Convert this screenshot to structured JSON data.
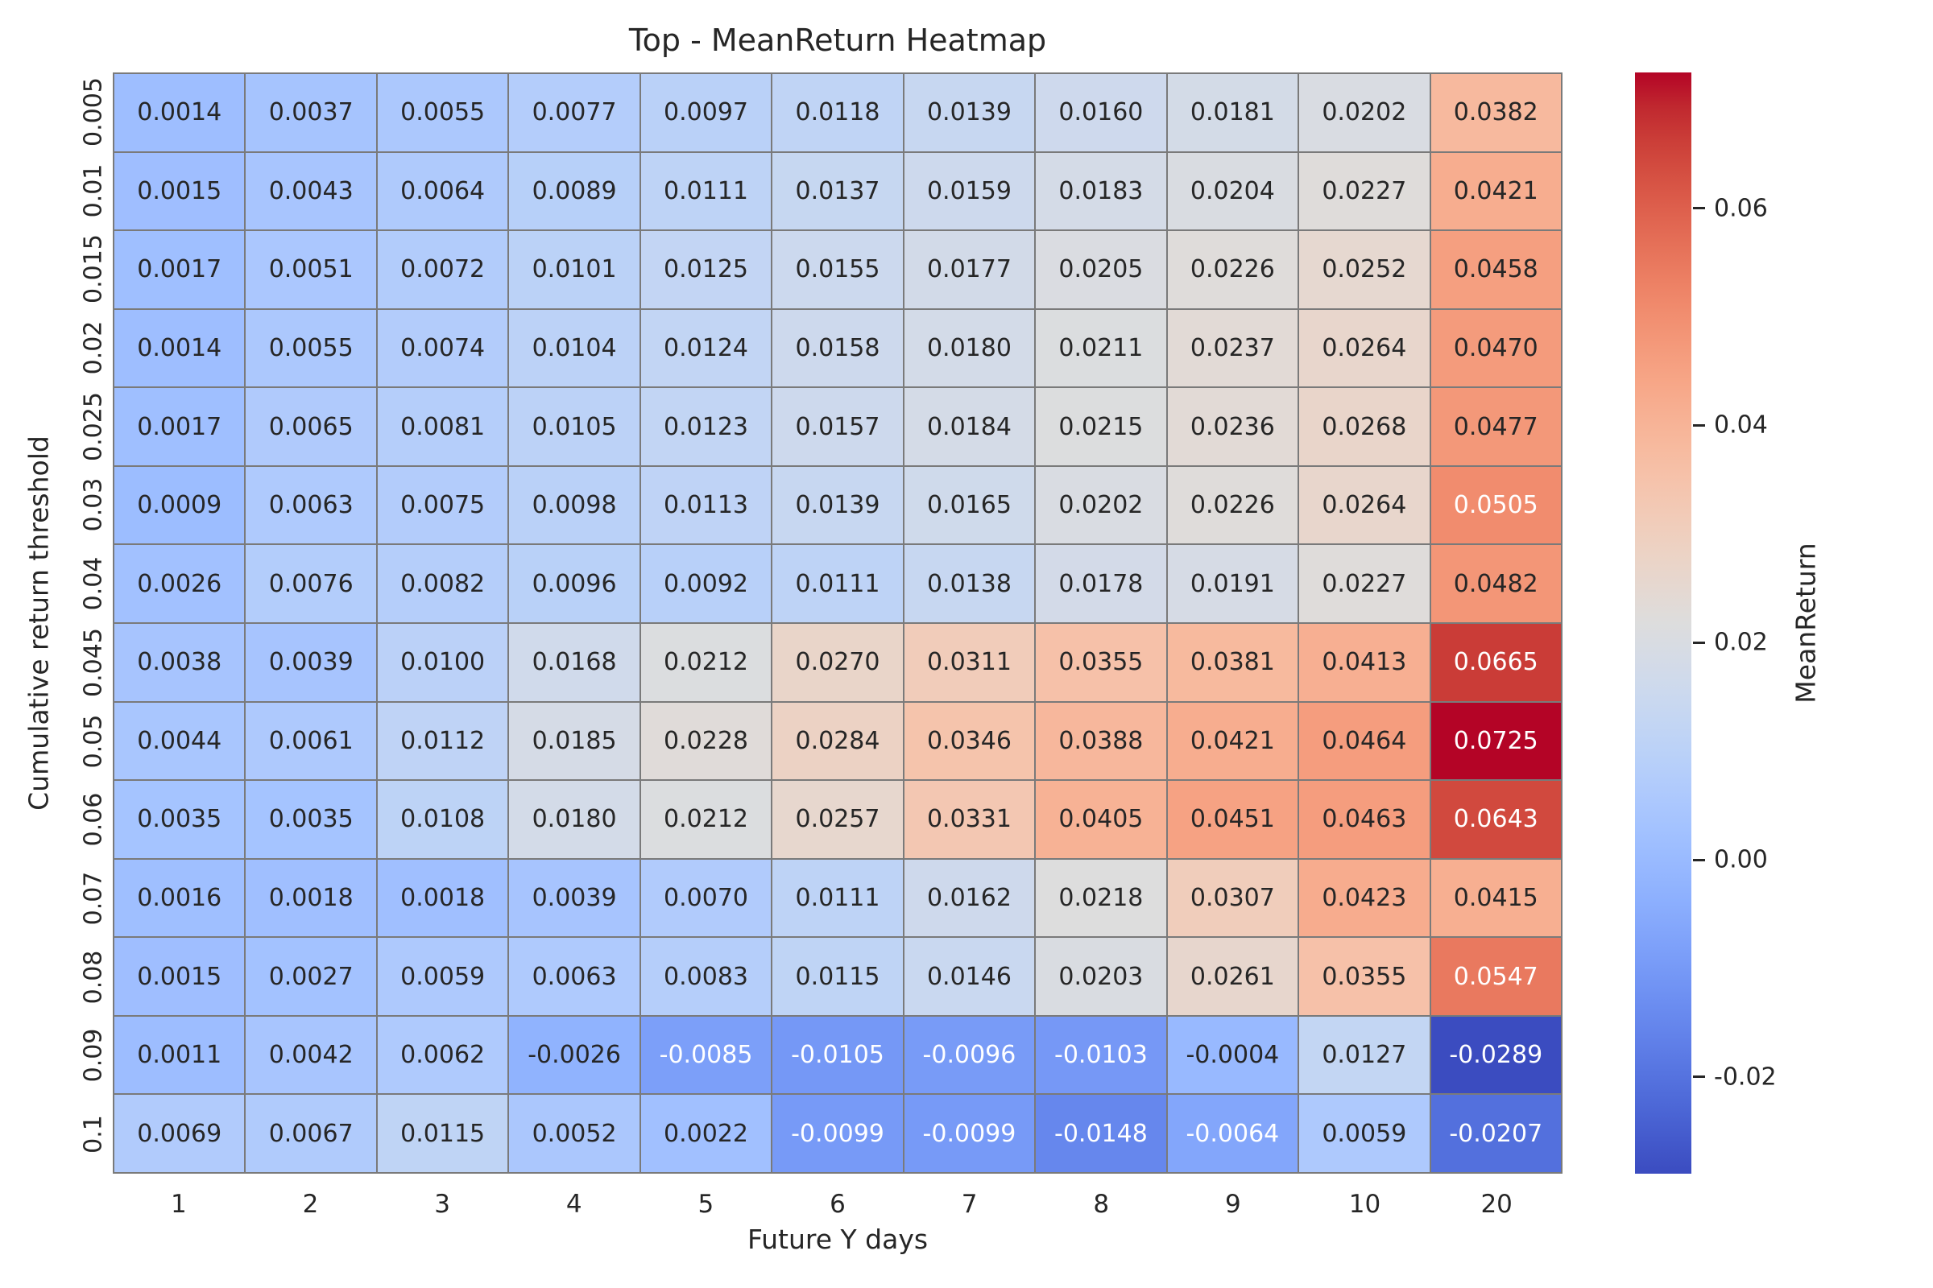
{
  "figure": {
    "background": "#ffffff",
    "text_color": "#262626"
  },
  "chart_data": {
    "type": "heatmap",
    "title": "Top - MeanReturn Heatmap",
    "xlabel": "Future Y days",
    "ylabel": "Cumulative return threshold",
    "x_categories": [
      "1",
      "2",
      "3",
      "4",
      "5",
      "6",
      "7",
      "8",
      "9",
      "10",
      "20"
    ],
    "y_categories": [
      "0.005",
      "0.01",
      "0.015",
      "0.02",
      "0.025",
      "0.03",
      "0.04",
      "0.045",
      "0.05",
      "0.06",
      "0.07",
      "0.08",
      "0.09",
      "0.1"
    ],
    "values": [
      [
        0.0014,
        0.0037,
        0.0055,
        0.0077,
        0.0097,
        0.0118,
        0.0139,
        0.016,
        0.0181,
        0.0202,
        0.0382
      ],
      [
        0.0015,
        0.0043,
        0.0064,
        0.0089,
        0.0111,
        0.0137,
        0.0159,
        0.0183,
        0.0204,
        0.0227,
        0.0421
      ],
      [
        0.0017,
        0.0051,
        0.0072,
        0.0101,
        0.0125,
        0.0155,
        0.0177,
        0.0205,
        0.0226,
        0.0252,
        0.0458
      ],
      [
        0.0014,
        0.0055,
        0.0074,
        0.0104,
        0.0124,
        0.0158,
        0.018,
        0.0211,
        0.0237,
        0.0264,
        0.047
      ],
      [
        0.0017,
        0.0065,
        0.0081,
        0.0105,
        0.0123,
        0.0157,
        0.0184,
        0.0215,
        0.0236,
        0.0268,
        0.0477
      ],
      [
        0.0009,
        0.0063,
        0.0075,
        0.0098,
        0.0113,
        0.0139,
        0.0165,
        0.0202,
        0.0226,
        0.0264,
        0.0505
      ],
      [
        0.0026,
        0.0076,
        0.0082,
        0.0096,
        0.0092,
        0.0111,
        0.0138,
        0.0178,
        0.0191,
        0.0227,
        0.0482
      ],
      [
        0.0038,
        0.0039,
        0.01,
        0.0168,
        0.0212,
        0.027,
        0.0311,
        0.0355,
        0.0381,
        0.0413,
        0.0665
      ],
      [
        0.0044,
        0.0061,
        0.0112,
        0.0185,
        0.0228,
        0.0284,
        0.0346,
        0.0388,
        0.0421,
        0.0464,
        0.0725
      ],
      [
        0.0035,
        0.0035,
        0.0108,
        0.018,
        0.0212,
        0.0257,
        0.0331,
        0.0405,
        0.0451,
        0.0463,
        0.0643
      ],
      [
        0.0016,
        0.0018,
        0.0018,
        0.0039,
        0.007,
        0.0111,
        0.0162,
        0.0218,
        0.0307,
        0.0423,
        0.0415
      ],
      [
        0.0015,
        0.0027,
        0.0059,
        0.0063,
        0.0083,
        0.0115,
        0.0146,
        0.0203,
        0.0261,
        0.0355,
        0.0547
      ],
      [
        0.0011,
        0.0042,
        0.0062,
        -0.0026,
        -0.0085,
        -0.0105,
        -0.0096,
        -0.0103,
        -0.0004,
        0.0127,
        -0.0289
      ],
      [
        0.0069,
        0.0067,
        0.0115,
        0.0052,
        0.0022,
        -0.0099,
        -0.0099,
        -0.0148,
        -0.0064,
        0.0059,
        -0.0207
      ]
    ],
    "vmin": -0.0289,
    "vmax": 0.0725,
    "value_decimals": 4,
    "grid_on": true,
    "grid_line_color": "#7a7a7a",
    "annotation_dark_color": "#262626",
    "annotation_light_color": "#ffffff",
    "luminance_threshold": 0.408,
    "colormap_name": "coolwarm",
    "colormap_anchors_rgb": [
      [
        59,
        76,
        192
      ],
      [
        68,
        90,
        204
      ],
      [
        77,
        104,
        215
      ],
      [
        87,
        117,
        225
      ],
      [
        98,
        130,
        234
      ],
      [
        108,
        142,
        241
      ],
      [
        119,
        154,
        247
      ],
      [
        130,
        165,
        251
      ],
      [
        141,
        176,
        254
      ],
      [
        152,
        185,
        255
      ],
      [
        163,
        194,
        255
      ],
      [
        174,
        201,
        253
      ],
      [
        184,
        208,
        249
      ],
      [
        194,
        213,
        244
      ],
      [
        204,
        217,
        238
      ],
      [
        213,
        219,
        230
      ],
      [
        221,
        221,
        221
      ],
      [
        229,
        216,
        209
      ],
      [
        236,
        211,
        197
      ],
      [
        241,
        204,
        185
      ],
      [
        245,
        196,
        173
      ],
      [
        247,
        187,
        160
      ],
      [
        247,
        177,
        148
      ],
      [
        247,
        166,
        135
      ],
      [
        244,
        154,
        123
      ],
      [
        241,
        141,
        111
      ],
      [
        236,
        127,
        99
      ],
      [
        229,
        112,
        88
      ],
      [
        222,
        96,
        77
      ],
      [
        213,
        80,
        66
      ],
      [
        203,
        62,
        56
      ],
      [
        192,
        40,
        47
      ],
      [
        180,
        4,
        38
      ]
    ],
    "colorbar": {
      "label": "MeanReturn",
      "position": "right",
      "tick_labels": [
        "0.06",
        "0.04",
        "0.02",
        "0.00",
        "-0.02"
      ],
      "tick_values": [
        0.06,
        0.04,
        0.02,
        0.0,
        -0.02
      ]
    }
  }
}
